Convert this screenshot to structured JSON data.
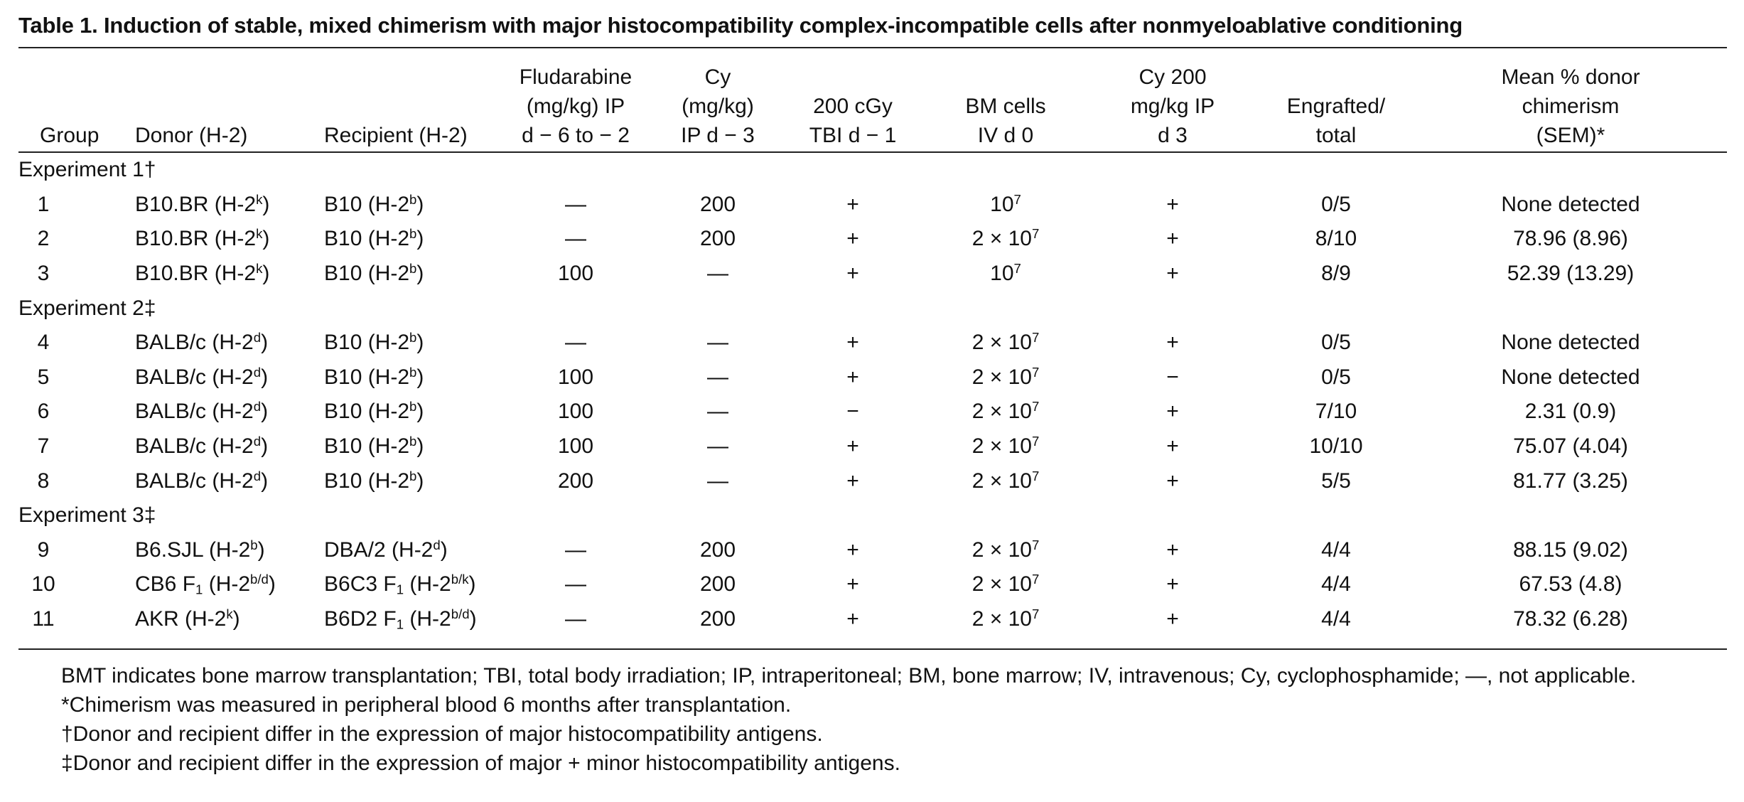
{
  "table": {
    "title": "Table 1.  Induction of stable, mixed chimerism with major histocompatibility complex-incompatible cells after nonmyeloablative conditioning",
    "headers": [
      [
        "Group"
      ],
      [
        "Donor (H-2)"
      ],
      [
        "Recipient (H-2)"
      ],
      [
        "Fludarabine",
        "(mg/kg) IP",
        "d − 6 to − 2"
      ],
      [
        "Cy",
        "(mg/kg)",
        "IP d − 3"
      ],
      [
        "200 cGy",
        "TBI d − 1"
      ],
      [
        "BM cells",
        "IV d 0"
      ],
      [
        "Cy 200",
        "mg/kg IP",
        "d 3"
      ],
      [
        "Engrafted/",
        "total"
      ],
      [
        "Mean % donor",
        "chimerism",
        "(SEM)*"
      ]
    ],
    "sections": [
      {
        "label": "Experiment 1†",
        "rows": [
          {
            "group": "1",
            "donor": "B10.BR (H-2",
            "donor_sup": "k",
            "donor_sub": "",
            "donor_end": ")",
            "recipient": "B10 (H-2",
            "recipient_sup": "b",
            "recipient_sub": "",
            "recipient_end": ")",
            "flu": "—",
            "cy": "200",
            "tbi": "+",
            "bm": "10",
            "bm_exp": "7",
            "cy200": "+",
            "engrafted": "0/5",
            "chimerism": "None detected"
          },
          {
            "group": "2",
            "donor": "B10.BR (H-2",
            "donor_sup": "k",
            "donor_sub": "",
            "donor_end": ")",
            "recipient": "B10 (H-2",
            "recipient_sup": "b",
            "recipient_sub": "",
            "recipient_end": ")",
            "flu": "—",
            "cy": "200",
            "tbi": "+",
            "bm": "2 × 10",
            "bm_exp": "7",
            "cy200": "+",
            "engrafted": "8/10",
            "chimerism": "78.96 (8.96)"
          },
          {
            "group": "3",
            "donor": "B10.BR (H-2",
            "donor_sup": "k",
            "donor_sub": "",
            "donor_end": ")",
            "recipient": "B10 (H-2",
            "recipient_sup": "b",
            "recipient_sub": "",
            "recipient_end": ")",
            "flu": "100",
            "cy": "—",
            "tbi": "+",
            "bm": "10",
            "bm_exp": "7",
            "cy200": "+",
            "engrafted": "8/9",
            "chimerism": "52.39 (13.29)"
          }
        ]
      },
      {
        "label": "Experiment 2‡",
        "rows": [
          {
            "group": "4",
            "donor": "BALB/c (H-2",
            "donor_sup": "d",
            "donor_sub": "",
            "donor_end": ")",
            "recipient": "B10 (H-2",
            "recipient_sup": "b",
            "recipient_sub": "",
            "recipient_end": ")",
            "flu": "—",
            "cy": "—",
            "tbi": "+",
            "bm": "2 × 10",
            "bm_exp": "7",
            "cy200": "+",
            "engrafted": "0/5",
            "chimerism": "None detected"
          },
          {
            "group": "5",
            "donor": "BALB/c (H-2",
            "donor_sup": "d",
            "donor_sub": "",
            "donor_end": ")",
            "recipient": "B10 (H-2",
            "recipient_sup": "b",
            "recipient_sub": "",
            "recipient_end": ")",
            "flu": "100",
            "cy": "—",
            "tbi": "+",
            "bm": "2 × 10",
            "bm_exp": "7",
            "cy200": "−",
            "engrafted": "0/5",
            "chimerism": "None detected"
          },
          {
            "group": "6",
            "donor": "BALB/c (H-2",
            "donor_sup": "d",
            "donor_sub": "",
            "donor_end": ")",
            "recipient": "B10 (H-2",
            "recipient_sup": "b",
            "recipient_sub": "",
            "recipient_end": ")",
            "flu": "100",
            "cy": "—",
            "tbi": "−",
            "bm": "2 × 10",
            "bm_exp": "7",
            "cy200": "+",
            "engrafted": "7/10",
            "chimerism": "2.31 (0.9)"
          },
          {
            "group": "7",
            "donor": "BALB/c (H-2",
            "donor_sup": "d",
            "donor_sub": "",
            "donor_end": ")",
            "recipient": "B10 (H-2",
            "recipient_sup": "b",
            "recipient_sub": "",
            "recipient_end": ")",
            "flu": "100",
            "cy": "—",
            "tbi": "+",
            "bm": "2 × 10",
            "bm_exp": "7",
            "cy200": "+",
            "engrafted": "10/10",
            "chimerism": "75.07 (4.04)"
          },
          {
            "group": "8",
            "donor": "BALB/c (H-2",
            "donor_sup": "d",
            "donor_sub": "",
            "donor_end": ")",
            "recipient": "B10 (H-2",
            "recipient_sup": "b",
            "recipient_sub": "",
            "recipient_end": ")",
            "flu": "200",
            "cy": "—",
            "tbi": "+",
            "bm": "2 × 10",
            "bm_exp": "7",
            "cy200": "+",
            "engrafted": "5/5",
            "chimerism": "81.77 (3.25)"
          }
        ]
      },
      {
        "label": "Experiment 3‡",
        "rows": [
          {
            "group": "9",
            "donor": "B6.SJL (H-2",
            "donor_sup": "b",
            "donor_sub": "",
            "donor_end": ")",
            "recipient": "DBA/2 (H-2",
            "recipient_sup": "d",
            "recipient_sub": "",
            "recipient_end": ")",
            "flu": "—",
            "cy": "200",
            "tbi": "+",
            "bm": "2 × 10",
            "bm_exp": "7",
            "cy200": "+",
            "engrafted": "4/4",
            "chimerism": "88.15 (9.02)"
          },
          {
            "group": "10",
            "donor": "CB6 F",
            "donor_sub": "1",
            "donor_mid": " (H-2",
            "donor_sup": "b/d",
            "donor_end": ")",
            "recipient": "B6C3 F",
            "recipient_sub": "1",
            "recipient_mid": " (H-2",
            "recipient_sup": "b/k",
            "recipient_end": ")",
            "flu": "—",
            "cy": "200",
            "tbi": "+",
            "bm": "2 × 10",
            "bm_exp": "7",
            "cy200": "+",
            "engrafted": "4/4",
            "chimerism": "67.53 (4.8)"
          },
          {
            "group": "11",
            "donor": "AKR (H-2",
            "donor_sup": "k",
            "donor_sub": "",
            "donor_end": ")",
            "recipient": "B6D2 F",
            "recipient_sub": "1",
            "recipient_mid": " (H-2",
            "recipient_sup": "b/d",
            "recipient_end": ")",
            "flu": "—",
            "cy": "200",
            "tbi": "+",
            "bm": "2 × 10",
            "bm_exp": "7",
            "cy200": "+",
            "engrafted": "4/4",
            "chimerism": "78.32 (6.28)"
          }
        ]
      }
    ],
    "footnotes": [
      "BMT indicates bone marrow transplantation; TBI, total body irradiation; IP, intraperitoneal; BM, bone marrow; IV, intravenous; Cy, cyclophosphamide; —, not applicable.",
      "*Chimerism was measured in peripheral blood 6 months after transplantation.",
      "†Donor and recipient differ in the expression of major histocompatibility antigens.",
      "‡Donor and recipient differ in the expression of major + minor histocompatibility antigens."
    ]
  }
}
